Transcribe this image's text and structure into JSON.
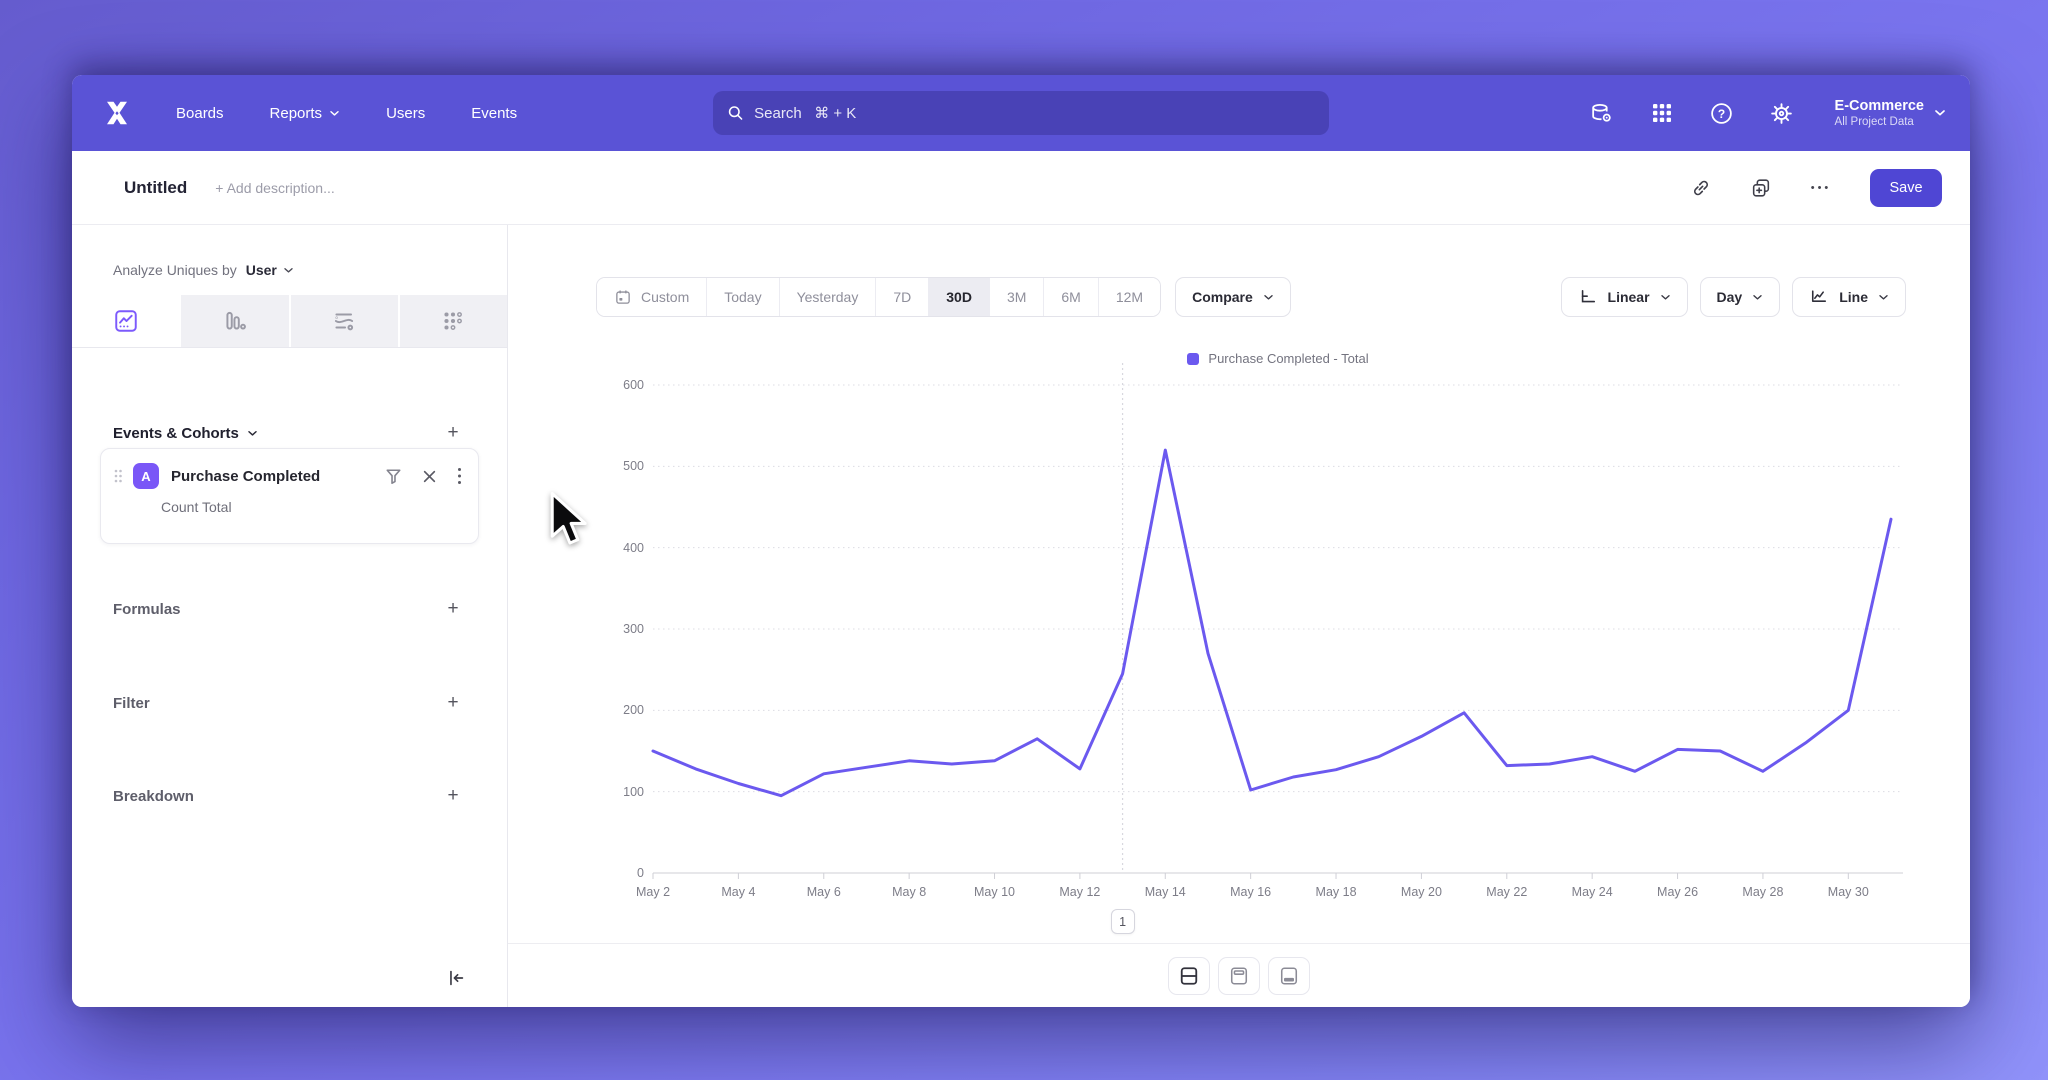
{
  "nav": {
    "brand_name": "Mixpanel",
    "items": [
      {
        "label": "Boards"
      },
      {
        "label": "Reports"
      },
      {
        "label": "Users"
      },
      {
        "label": "Events"
      }
    ],
    "search": {
      "placeholder": "Search   ⌘ + K"
    },
    "project": {
      "name": "E-Commerce",
      "scope": "All Project Data"
    }
  },
  "title_bar": {
    "title": "Untitled",
    "description_placeholder": "+ Add description...",
    "save_label": "Save"
  },
  "sidebar": {
    "analyze_prefix": "Analyze Uniques by",
    "analyze_value": "User",
    "events_section_label": "Events & Cohorts",
    "event_card": {
      "badge": "A",
      "name": "Purchase Completed",
      "metric": "Count Total"
    },
    "formulas_label": "Formulas",
    "filter_label": "Filter",
    "breakdown_label": "Breakdown"
  },
  "controls": {
    "date_ranges": [
      "Custom",
      "Today",
      "Yesterday",
      "7D",
      "30D",
      "3M",
      "6M",
      "12M"
    ],
    "active_range": "30D",
    "compare_label": "Compare",
    "scale_label": "Linear",
    "interval_label": "Day",
    "chart_type_label": "Line"
  },
  "chart_data": {
    "type": "line",
    "title": "",
    "legend": [
      "Purchase Completed - Total"
    ],
    "x": [
      "May 2",
      "May 3",
      "May 4",
      "May 5",
      "May 6",
      "May 7",
      "May 8",
      "May 9",
      "May 10",
      "May 11",
      "May 12",
      "May 13",
      "May 14",
      "May 15",
      "May 16",
      "May 17",
      "May 18",
      "May 19",
      "May 20",
      "May 21",
      "May 22",
      "May 23",
      "May 24",
      "May 25",
      "May 26",
      "May 27",
      "May 28",
      "May 29",
      "May 30",
      "May 31"
    ],
    "series": [
      {
        "name": "Purchase Completed - Total",
        "color": "#6b59ef",
        "values": [
          150,
          128,
          110,
          95,
          122,
          130,
          138,
          134,
          138,
          165,
          128,
          245,
          520,
          270,
          102,
          118,
          127,
          143,
          168,
          197,
          132,
          134,
          143,
          125,
          152,
          150,
          125,
          160,
          200,
          435
        ]
      }
    ],
    "x_tick_step": 2,
    "ylim": [
      0,
      600
    ],
    "yticks": [
      0,
      100,
      200,
      300,
      400,
      500,
      600
    ],
    "grid": "horizontal-dotted",
    "legend_position": "top-center",
    "annotation": {
      "label": "1",
      "x": "May 13"
    }
  },
  "footer": {
    "layout_options": [
      "split-view",
      "chart-only",
      "table-bottom"
    ]
  },
  "icons_text": {
    "plus": "+",
    "more": "•••"
  },
  "colors": {
    "nav": "#5a53d6",
    "save_button": "#4f46d4",
    "series_line": "#6b59ef",
    "event_badge": "#7a57f7",
    "active_tab_icon": "#7c5afc"
  }
}
